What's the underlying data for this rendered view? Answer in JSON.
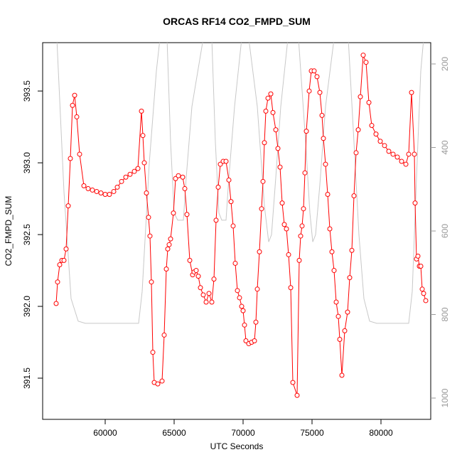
{
  "chart_data": {
    "type": "line",
    "title": "ORCAS RF14 CO2_FMPD_SUM",
    "x_label": "UTC Seconds",
    "y_label": "CO2_FMPD_SUM",
    "xlim": [
      55464,
      83608
    ],
    "xticks": [
      60000,
      65000,
      70000,
      75000,
      80000
    ],
    "ylim": [
      391.213,
      393.837
    ],
    "yticks": [
      391.5,
      392.0,
      392.5,
      393.0,
      393.5
    ],
    "y2lim": [
      1051,
      149
    ],
    "y2ticks": [
      200,
      400,
      600,
      800,
      1000
    ],
    "series": [
      {
        "color": "#ff0000",
        "markers": true,
        "x": [
          56443,
          56546,
          56701,
          56856,
          57010,
          57165,
          57320,
          57474,
          57629,
          57784,
          57938,
          58144,
          58454,
          58763,
          59072,
          59381,
          59691,
          60000,
          60309,
          60619,
          60876,
          61186,
          61495,
          61804,
          62113,
          62371,
          62629,
          62732,
          62835,
          62990,
          63144,
          63247,
          63351,
          63454,
          63557,
          63814,
          64124,
          64278,
          64433,
          64536,
          64639,
          64742,
          64948,
          65103,
          65309,
          65619,
          65773,
          65928,
          66134,
          66340,
          66443,
          66598,
          66753,
          66907,
          67113,
          67320,
          67526,
          67732,
          67887,
          68041,
          68196,
          68351,
          68557,
          68763,
          68969,
          69124,
          69278,
          69433,
          69588,
          69742,
          69897,
          70000,
          70103,
          70206,
          70412,
          70619,
          70825,
          70928,
          71031,
          71186,
          71340,
          71443,
          71546,
          71649,
          71804,
          72010,
          72165,
          72371,
          72526,
          72680,
          72835,
          72990,
          73144,
          73299,
          73454,
          73608,
          73918,
          74072,
          74175,
          74278,
          74381,
          74485,
          74588,
          74794,
          74948,
          75155,
          75361,
          75567,
          75722,
          75825,
          75979,
          76134,
          76289,
          76443,
          76598,
          76753,
          76907,
          77010,
          77165,
          77371,
          77577,
          77732,
          77887,
          78041,
          78196,
          78351,
          78505,
          78711,
          78918,
          79124,
          79330,
          79639,
          79948,
          80258,
          80567,
          80876,
          81186,
          81495,
          81804,
          82010,
          82216,
          82423,
          82474,
          82577,
          82680,
          82784,
          82887,
          82990,
          83093,
          83247
        ],
        "values": [
          392.02,
          392.17,
          392.29,
          392.32,
          392.32,
          392.4,
          392.7,
          393.03,
          393.4,
          393.47,
          393.32,
          393.06,
          392.84,
          392.82,
          392.81,
          392.8,
          392.79,
          392.78,
          392.78,
          392.8,
          392.83,
          392.87,
          392.9,
          392.92,
          392.94,
          392.96,
          393.36,
          393.19,
          393.0,
          392.79,
          392.62,
          392.49,
          392.17,
          391.68,
          391.47,
          391.46,
          391.48,
          391.8,
          392.26,
          392.4,
          392.43,
          392.47,
          392.65,
          392.89,
          392.91,
          392.9,
          392.82,
          392.64,
          392.32,
          392.22,
          392.24,
          392.25,
          392.21,
          392.13,
          392.08,
          392.03,
          392.09,
          392.03,
          392.19,
          392.6,
          392.83,
          392.99,
          393.01,
          393.01,
          392.88,
          392.73,
          392.56,
          392.3,
          392.11,
          392.06,
          392.0,
          391.97,
          391.87,
          391.76,
          391.74,
          391.75,
          391.76,
          391.89,
          392.12,
          392.38,
          392.68,
          392.87,
          393.14,
          393.36,
          393.45,
          393.48,
          393.35,
          393.23,
          393.1,
          392.97,
          392.72,
          392.57,
          392.54,
          392.36,
          392.13,
          391.47,
          391.38,
          392.32,
          392.49,
          392.56,
          392.68,
          392.93,
          393.22,
          393.5,
          393.64,
          393.64,
          393.6,
          393.49,
          393.33,
          393.17,
          392.99,
          392.78,
          392.54,
          392.38,
          392.25,
          392.03,
          391.93,
          391.77,
          391.52,
          391.83,
          391.96,
          392.2,
          392.39,
          392.77,
          393.07,
          393.23,
          393.46,
          393.75,
          393.7,
          393.42,
          393.26,
          393.2,
          393.15,
          393.12,
          393.08,
          393.06,
          393.04,
          393.01,
          392.99,
          393.06,
          393.49,
          393.06,
          392.72,
          392.33,
          392.35,
          392.28,
          392.28,
          392.12,
          392.09,
          392.04
        ]
      },
      {
        "color": "#c8c8c8",
        "axis": "y2",
        "markers": false,
        "x": [
          56495,
          57010,
          57526,
          58041,
          58557,
          62423,
          62680,
          63196,
          63711,
          63969,
          64485,
          64742,
          65000,
          65258,
          65670,
          65876,
          66289,
          67062,
          67423,
          67732,
          67990,
          68247,
          68454,
          68763,
          68969,
          69381,
          69897,
          70412,
          71031,
          71546,
          71856,
          72062,
          72371,
          72732,
          73247,
          74021,
          74536,
          74845,
          75052,
          75258,
          75567,
          75979,
          76598,
          77629,
          78041,
          78402,
          78763,
          79175,
          79691,
          82010,
          82268,
          82577,
          82887,
          83093
        ],
        "values": [
          140,
          506,
          762,
          816,
          821,
          821,
          745,
          438,
          217,
          140,
          140,
          387,
          557,
          574,
          574,
          472,
          302,
          149,
          140,
          140,
          387,
          557,
          574,
          574,
          472,
          302,
          140,
          140,
          302,
          540,
          626,
          609,
          472,
          302,
          140,
          140,
          387,
          557,
          626,
          609,
          489,
          302,
          140,
          140,
          387,
          609,
          762,
          816,
          821,
          821,
          745,
          472,
          217,
          140
        ]
      }
    ]
  }
}
